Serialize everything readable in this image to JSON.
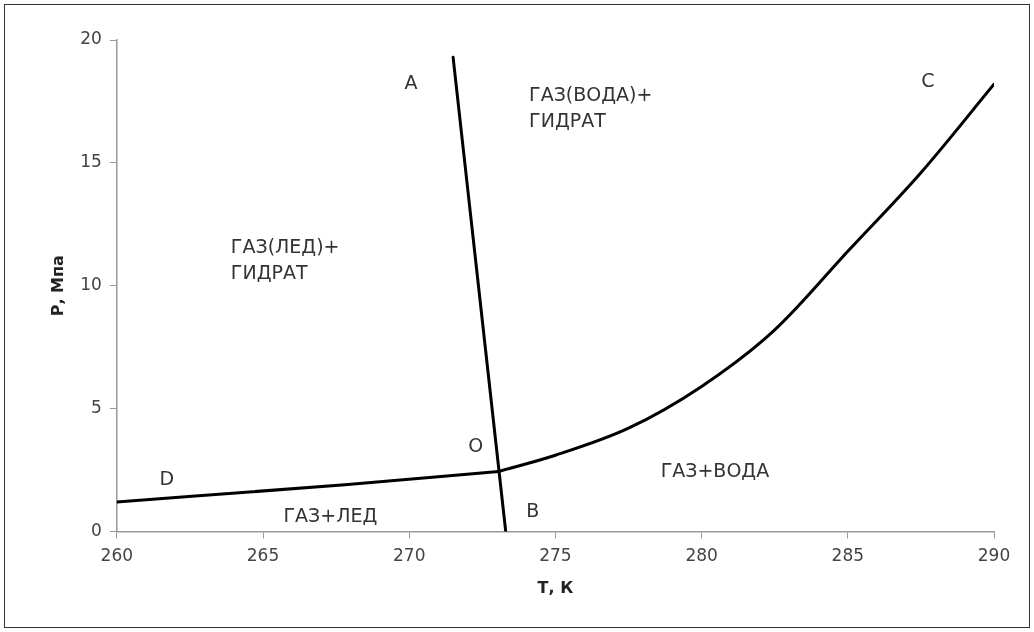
{
  "chart_data": {
    "type": "line",
    "xlabel": "Т, К",
    "ylabel": "Р, Мпа",
    "xlim": [
      260,
      290
    ],
    "xticks": [
      260,
      265,
      270,
      275,
      280,
      285,
      290
    ],
    "ylim": [
      0,
      20
    ],
    "yticks": [
      0,
      5,
      10,
      15,
      20
    ],
    "grid": false,
    "legend": false,
    "marker": "none",
    "line_style": "solid",
    "series": [
      {
        "color": "#000000",
        "x": [
          271.5,
          273.3
        ],
        "values": [
          19.3,
          0
        ]
      },
      {
        "color": "#000000",
        "x": [
          260,
          267.8,
          273.06
        ],
        "values": [
          1.2,
          1.9,
          2.44
        ]
      },
      {
        "color": "#000000",
        "x": [
          273.06,
          275,
          277.5,
          280,
          282.5,
          285,
          287.5,
          290
        ],
        "values": [
          2.44,
          3.1,
          4.2,
          5.9,
          8.2,
          11.4,
          14.6,
          18.2
        ]
      }
    ],
    "annotations": [
      {
        "text": "A",
        "x": 271.5,
        "y": 19.3
      },
      "C",
      {
        "text": "D",
        "x": 260,
        "y": 1.2
      },
      {
        "text": "O",
        "x": 273.06,
        "y": 2.44
      },
      {
        "text": "B",
        "x": 273.3,
        "y": 0
      },
      "ГАЗ(ЛЕД)+\nГИДРАТ",
      "ГАЗ(ВОДА)+\nГИДРАТ",
      "ГАЗ+ЛЕД",
      "ГАЗ+ВОДА"
    ]
  }
}
